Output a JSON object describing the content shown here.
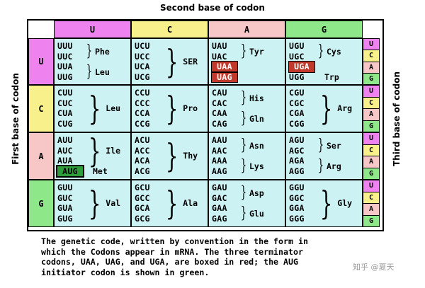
{
  "labels": {
    "second_base": "Second base of codon",
    "first_base": "First base of codon",
    "third_base": "Third base of codon"
  },
  "colors": {
    "U": "#ee82ee",
    "C": "#f8f08a",
    "A": "#f7c6c6",
    "G": "#8ee88a",
    "cell": "#ccf2f4",
    "stop": "#c0392b",
    "start": "#2e9e3a"
  },
  "bases": [
    "U",
    "C",
    "A",
    "G"
  ],
  "third_bases": [
    "U",
    "C",
    "A",
    "G"
  ],
  "rows": [
    {
      "first": "U",
      "cells": [
        {
          "codons": [
            "UUU",
            "UUC",
            "UUA",
            "UUG"
          ],
          "groups": [
            {
              "label": "Phe",
              "span": [
                0,
                1
              ]
            },
            {
              "label": "Leu",
              "span": [
                2,
                3
              ]
            }
          ]
        },
        {
          "codons": [
            "UCU",
            "UCC",
            "UCA",
            "UCG"
          ],
          "groups": [
            {
              "label": "SER",
              "span": [
                0,
                3
              ]
            }
          ]
        },
        {
          "codons": [
            "UAU",
            "UAC",
            "UAA",
            "UAG"
          ],
          "stops": [
            2,
            3
          ],
          "groups": [
            {
              "label": "Tyr",
              "span": [
                0,
                1
              ]
            }
          ]
        },
        {
          "codons": [
            "UGU",
            "UGC",
            "UGA",
            "UGG"
          ],
          "stops": [
            2
          ],
          "groups": [
            {
              "label": "Cys",
              "span": [
                0,
                1
              ]
            },
            {
              "label": "Trp",
              "span": [
                3,
                3
              ]
            }
          ]
        }
      ]
    },
    {
      "first": "C",
      "cells": [
        {
          "codons": [
            "CUU",
            "CUC",
            "CUA",
            "CUG"
          ],
          "groups": [
            {
              "label": "Leu",
              "span": [
                0,
                3
              ]
            }
          ]
        },
        {
          "codons": [
            "CCU",
            "CCC",
            "CCA",
            "CCG"
          ],
          "groups": [
            {
              "label": "Pro",
              "span": [
                0,
                3
              ]
            }
          ]
        },
        {
          "codons": [
            "CAU",
            "CAC",
            "CAA",
            "CAG"
          ],
          "groups": [
            {
              "label": "His",
              "span": [
                0,
                1
              ]
            },
            {
              "label": "Gln",
              "span": [
                2,
                3
              ]
            }
          ]
        },
        {
          "codons": [
            "CGU",
            "CGC",
            "CGA",
            "CGG"
          ],
          "groups": [
            {
              "label": "Arg",
              "span": [
                0,
                3
              ]
            }
          ]
        }
      ]
    },
    {
      "first": "A",
      "cells": [
        {
          "codons": [
            "AUU",
            "AUC",
            "AUA",
            "AUG"
          ],
          "starts": [
            3
          ],
          "groups": [
            {
              "label": "Ile",
              "span": [
                0,
                2
              ]
            },
            {
              "label": "Met",
              "span": [
                3,
                3
              ]
            }
          ]
        },
        {
          "codons": [
            "ACU",
            "ACC",
            "ACA",
            "ACG"
          ],
          "groups": [
            {
              "label": "Thy",
              "span": [
                0,
                3
              ]
            }
          ]
        },
        {
          "codons": [
            "AAU",
            "AAC",
            "AAA",
            "AAG"
          ],
          "groups": [
            {
              "label": "Asn",
              "span": [
                0,
                1
              ]
            },
            {
              "label": "Lys",
              "span": [
                2,
                3
              ]
            }
          ]
        },
        {
          "codons": [
            "AGU",
            "AGC",
            "AGA",
            "AGG"
          ],
          "groups": [
            {
              "label": "Ser",
              "span": [
                0,
                1
              ]
            },
            {
              "label": "Arg",
              "span": [
                2,
                3
              ]
            }
          ]
        }
      ]
    },
    {
      "first": "G",
      "cells": [
        {
          "codons": [
            "GUU",
            "GUC",
            "GUA",
            "GUG"
          ],
          "groups": [
            {
              "label": "Val",
              "span": [
                0,
                3
              ]
            }
          ]
        },
        {
          "codons": [
            "GCU",
            "GCC",
            "GCA",
            "GCG"
          ],
          "groups": [
            {
              "label": "Ala",
              "span": [
                0,
                3
              ]
            }
          ]
        },
        {
          "codons": [
            "GAU",
            "GAC",
            "GAA",
            "GAG"
          ],
          "groups": [
            {
              "label": "Asp",
              "span": [
                0,
                1
              ]
            },
            {
              "label": "Glu",
              "span": [
                2,
                3
              ]
            }
          ]
        },
        {
          "codons": [
            "GGU",
            "GGC",
            "GGA",
            "GGG"
          ],
          "groups": [
            {
              "label": "Gly",
              "span": [
                0,
                3
              ]
            }
          ]
        }
      ]
    }
  ],
  "caption": [
    "The genetic code, written by convention in the form in",
    "which the Codons appear in mRNA.  The three terminator",
    "codons, UAA, UAG, and UGA, are boxed in red; the AUG",
    "initiator codon is shown in green."
  ],
  "watermark": "知乎 @夏天"
}
